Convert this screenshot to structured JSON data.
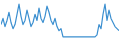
{
  "chart_data": {
    "type": "line",
    "color": "#3b8fd0",
    "tick_labels": false,
    "x": [
      0,
      1,
      2,
      3,
      4,
      5,
      6,
      7,
      8,
      9,
      10,
      11,
      12,
      13,
      14,
      15,
      16,
      17,
      18,
      19,
      20,
      21,
      22,
      23,
      24,
      25,
      26,
      27,
      28,
      29,
      30,
      31,
      32,
      33,
      34,
      35,
      36,
      37,
      38,
      39,
      40,
      41,
      42,
      43,
      44,
      45,
      46,
      47,
      48,
      49,
      50,
      51,
      52,
      53,
      54,
      55,
      56,
      57,
      58,
      59
    ],
    "values": [
      45,
      60,
      40,
      55,
      75,
      50,
      35,
      45,
      70,
      95,
      65,
      45,
      55,
      80,
      60,
      40,
      50,
      70,
      55,
      85,
      60,
      50,
      65,
      90,
      75,
      55,
      45,
      60,
      40,
      30,
      35,
      15,
      15,
      15,
      15,
      15,
      15,
      15,
      15,
      15,
      15,
      15,
      15,
      15,
      15,
      15,
      15,
      15,
      20,
      45,
      35,
      70,
      95,
      55,
      80,
      60,
      50,
      40,
      35,
      30
    ],
    "xlim": [
      0,
      59
    ],
    "ylim": [
      0,
      100
    ]
  }
}
